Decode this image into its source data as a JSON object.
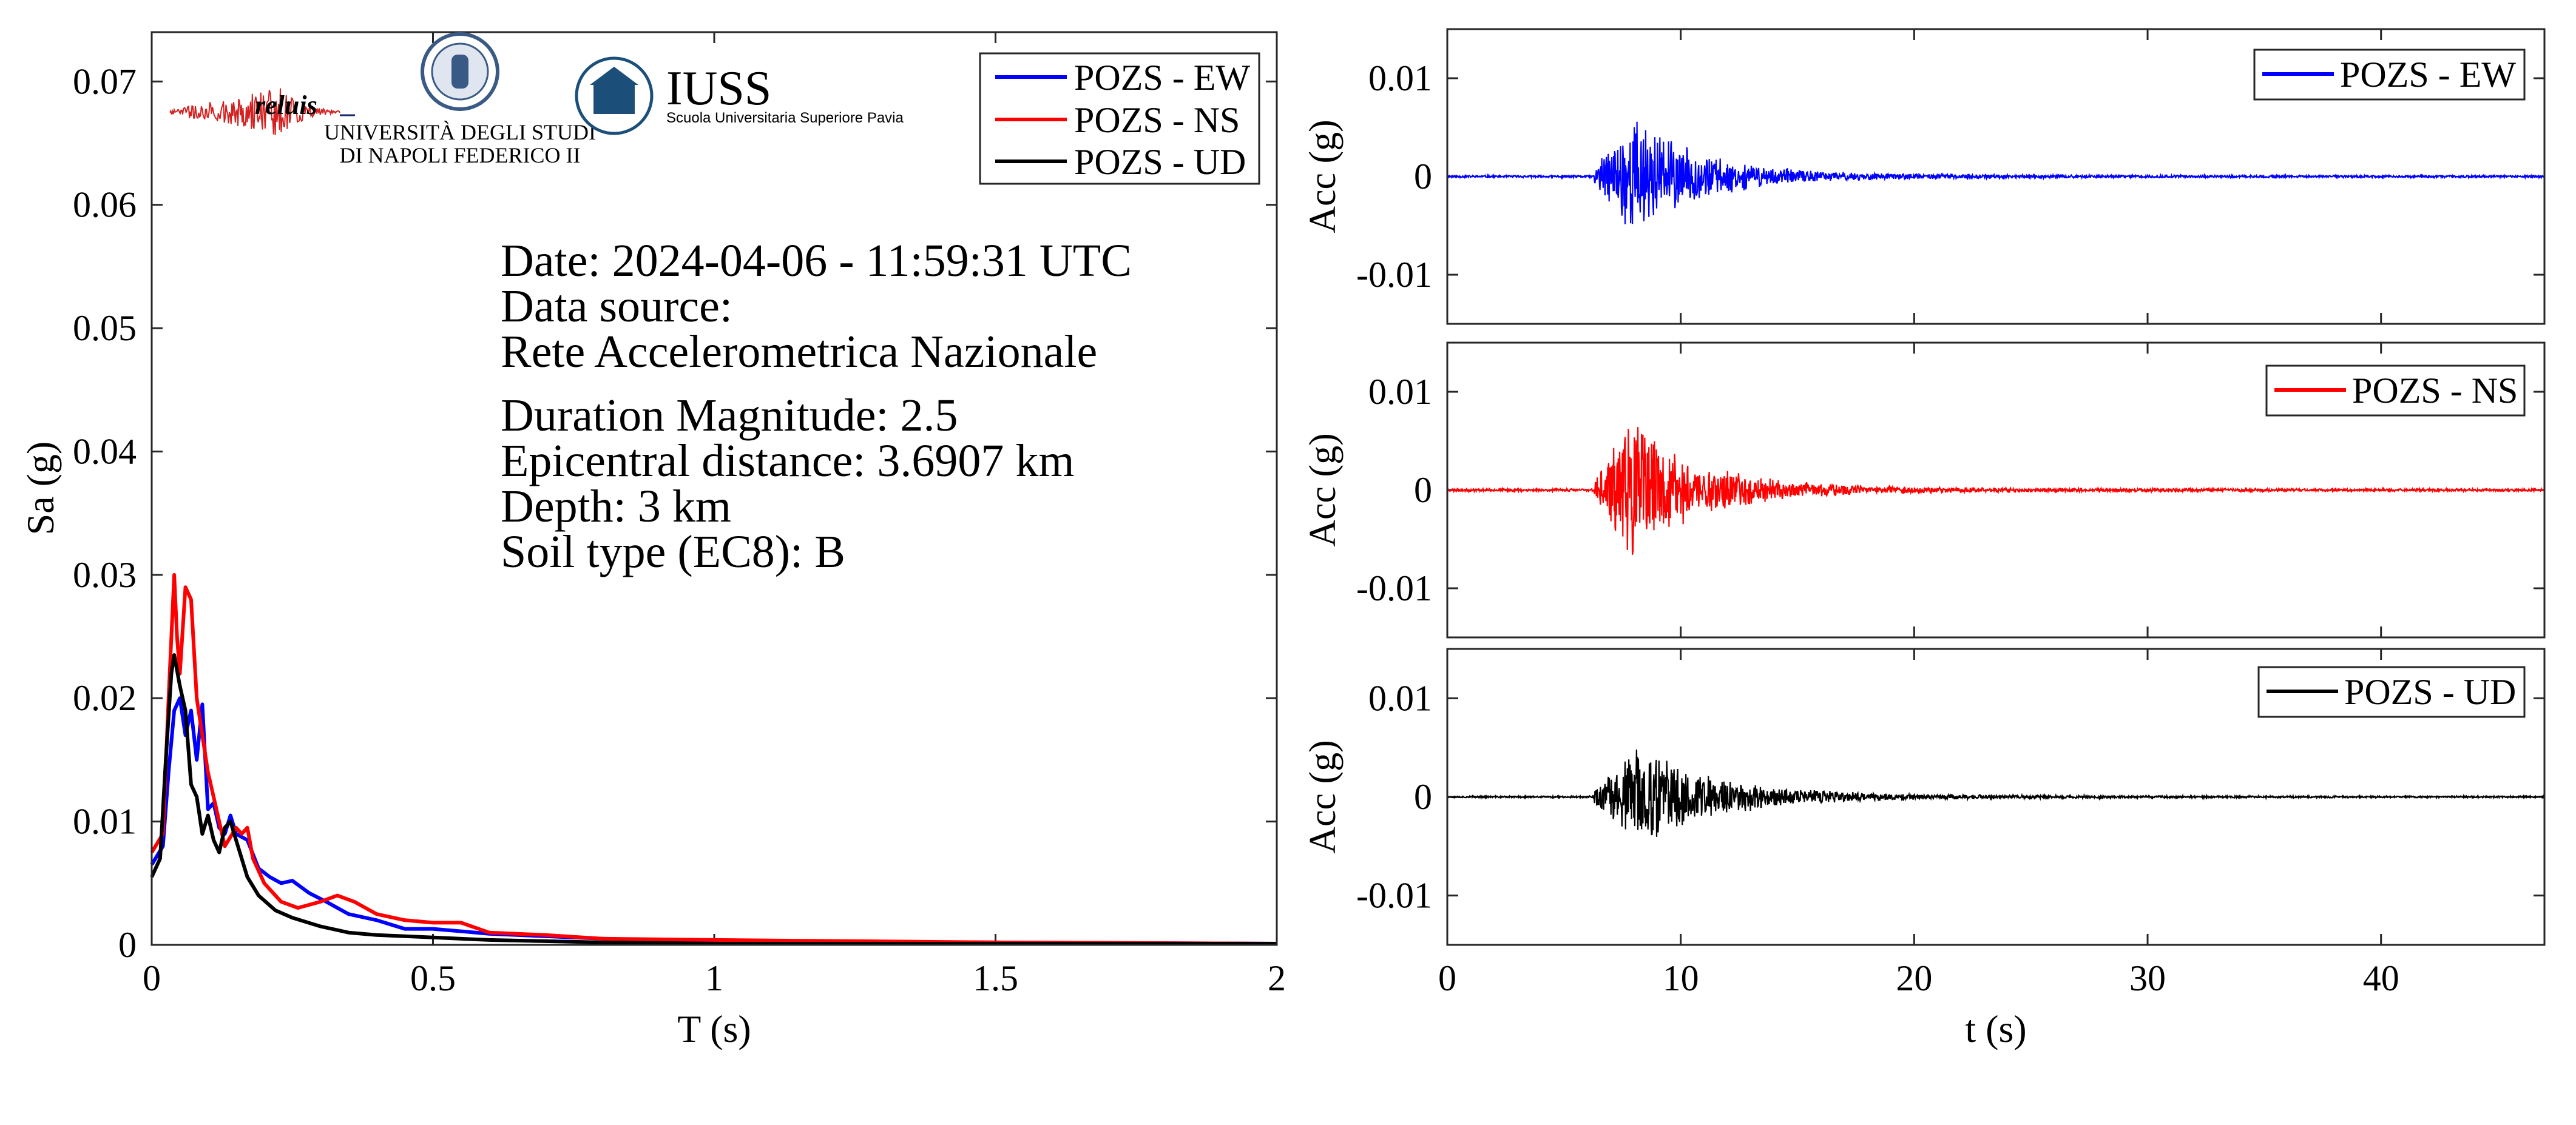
{
  "colors": {
    "ew": "#0000ff",
    "ns": "#ff0000",
    "ud": "#000000",
    "axis": "#262626",
    "iuss": "#1b4f7a"
  },
  "logos": {
    "reluis": "reluis",
    "unina_line1": "UNIVERSITÀ DEGLI STUDI",
    "unina_line2": "DI NAPOLI FEDERICO II",
    "iuss_title": "IUSS",
    "iuss_sub": "Scuola Universitaria Superiore Pavia"
  },
  "info": {
    "date": "Date: 2024-04-06 - 11:59:31 UTC",
    "source_label": "Data source:",
    "source": "Rete Accelerometrica Nazionale",
    "magnitude": "Duration Magnitude: 2.5",
    "distance": "Epicentral distance: 3.6907 km",
    "depth": "Depth: 3 km",
    "soil": "Soil type (EC8): B"
  },
  "chart_data": [
    {
      "type": "line",
      "xlabel": "T (s)",
      "ylabel": "Sa (g)",
      "xlim": [
        0,
        2
      ],
      "ylim": [
        0,
        0.074
      ],
      "xticks": [
        0,
        0.5,
        1,
        1.5,
        2
      ],
      "xtick_labels": [
        "0",
        "0.5",
        "1",
        "1.5",
        "2"
      ],
      "yticks": [
        0,
        0.01,
        0.02,
        0.03,
        0.04,
        0.05,
        0.06,
        0.07
      ],
      "ytick_labels": [
        "0",
        "0.01",
        "0.02",
        "0.03",
        "0.04",
        "0.05",
        "0.06",
        "0.07"
      ],
      "legend": "top-right",
      "series": [
        {
          "name": "POZS - EW",
          "color": "#0000ff",
          "x": [
            0,
            0.02,
            0.03,
            0.04,
            0.05,
            0.06,
            0.07,
            0.08,
            0.09,
            0.1,
            0.11,
            0.12,
            0.13,
            0.14,
            0.15,
            0.17,
            0.19,
            0.21,
            0.23,
            0.25,
            0.28,
            0.31,
            0.35,
            0.4,
            0.45,
            0.5,
            0.55,
            0.6,
            0.7,
            0.8,
            1.0,
            1.5,
            2.0
          ],
          "y": [
            0.0065,
            0.008,
            0.014,
            0.019,
            0.02,
            0.017,
            0.019,
            0.015,
            0.0195,
            0.011,
            0.0115,
            0.0095,
            0.009,
            0.0105,
            0.009,
            0.0085,
            0.0062,
            0.0055,
            0.005,
            0.0052,
            0.0042,
            0.0035,
            0.0025,
            0.002,
            0.0013,
            0.0013,
            0.0011,
            0.0009,
            0.0007,
            0.0005,
            0.0003,
            0.0002,
            0.0001
          ]
        },
        {
          "name": "POZS - NS",
          "color": "#ff0000",
          "x": [
            0,
            0.02,
            0.03,
            0.04,
            0.045,
            0.05,
            0.06,
            0.07,
            0.08,
            0.09,
            0.1,
            0.11,
            0.12,
            0.13,
            0.15,
            0.16,
            0.17,
            0.18,
            0.2,
            0.23,
            0.26,
            0.3,
            0.33,
            0.36,
            0.4,
            0.45,
            0.5,
            0.55,
            0.6,
            0.7,
            0.8,
            1.0,
            1.5,
            2.0
          ],
          "y": [
            0.0075,
            0.009,
            0.02,
            0.03,
            0.025,
            0.022,
            0.029,
            0.028,
            0.02,
            0.017,
            0.014,
            0.012,
            0.01,
            0.008,
            0.0095,
            0.009,
            0.0095,
            0.007,
            0.005,
            0.0035,
            0.003,
            0.0035,
            0.004,
            0.0035,
            0.0025,
            0.002,
            0.0018,
            0.0018,
            0.001,
            0.0008,
            0.0005,
            0.0004,
            0.0002,
            0.0001
          ]
        },
        {
          "name": "POZS - UD",
          "color": "#000000",
          "x": [
            0,
            0.015,
            0.025,
            0.035,
            0.04,
            0.05,
            0.06,
            0.07,
            0.08,
            0.09,
            0.1,
            0.11,
            0.12,
            0.13,
            0.14,
            0.15,
            0.17,
            0.19,
            0.22,
            0.25,
            0.3,
            0.35,
            0.4,
            0.5,
            0.6,
            0.7,
            0.8,
            1.0,
            1.5,
            2.0
          ],
          "y": [
            0.0055,
            0.007,
            0.015,
            0.022,
            0.0235,
            0.021,
            0.019,
            0.013,
            0.012,
            0.009,
            0.0105,
            0.0085,
            0.0075,
            0.0095,
            0.01,
            0.0085,
            0.0055,
            0.004,
            0.0028,
            0.0022,
            0.0015,
            0.001,
            0.0008,
            0.0006,
            0.0004,
            0.0003,
            0.0002,
            0.0001,
            0.0001,
            0.0001
          ]
        }
      ]
    },
    {
      "type": "line",
      "xlabel": "",
      "ylabel": "Acc (g)",
      "xlim": [
        0,
        47
      ],
      "ylim": [
        -0.015,
        0.015
      ],
      "yticks": [
        -0.01,
        0,
        0.01
      ],
      "ytick_labels": [
        "-0.01",
        "0",
        "0.01"
      ],
      "legend": "top-right",
      "series": [
        {
          "name": "POZS - EW",
          "color": "#0000ff",
          "envelope": {
            "onset": 6.3,
            "peak_time": 8.0,
            "peak_amplitude": 0.0062,
            "decay": 2.6,
            "noise": 0.00012,
            "seed": 11
          }
        }
      ]
    },
    {
      "type": "line",
      "xlabel": "",
      "ylabel": "Acc (g)",
      "xlim": [
        0,
        47
      ],
      "ylim": [
        -0.015,
        0.015
      ],
      "yticks": [
        -0.01,
        0,
        0.01
      ],
      "ytick_labels": [
        "-0.01",
        "0",
        "0.01"
      ],
      "legend": "top-right",
      "series": [
        {
          "name": "POZS - NS",
          "color": "#ff0000",
          "envelope": {
            "onset": 6.3,
            "peak_time": 7.9,
            "peak_amplitude": 0.0072,
            "decay": 2.8,
            "noise": 0.00015,
            "seed": 23
          }
        }
      ]
    },
    {
      "type": "line",
      "xlabel": "t (s)",
      "ylabel": "Acc (g)",
      "xlim": [
        0,
        47
      ],
      "ylim": [
        -0.015,
        0.015
      ],
      "xticks": [
        0,
        10,
        20,
        30,
        40
      ],
      "xtick_labels": [
        "0",
        "10",
        "20",
        "30",
        "40"
      ],
      "yticks": [
        -0.01,
        0,
        0.01
      ],
      "ytick_labels": [
        "-0.01",
        "0",
        "0.01"
      ],
      "legend": "top-right",
      "series": [
        {
          "name": "POZS - UD",
          "color": "#000000",
          "envelope": {
            "onset": 6.3,
            "peak_time": 8.2,
            "peak_amplitude": 0.005,
            "decay": 3.2,
            "noise": 0.0001,
            "seed": 37
          }
        }
      ]
    }
  ]
}
